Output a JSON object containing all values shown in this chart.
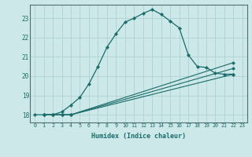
{
  "xlabel": "Humidex (Indice chaleur)",
  "bg_color": "#cce8e8",
  "grid_color": "#aacece",
  "line_color": "#1a6b6b",
  "xlim": [
    -0.5,
    23.5
  ],
  "ylim": [
    17.6,
    23.7
  ],
  "yticks": [
    18,
    19,
    20,
    21,
    22,
    23
  ],
  "xticks": [
    0,
    1,
    2,
    3,
    4,
    5,
    6,
    7,
    8,
    9,
    10,
    11,
    12,
    13,
    14,
    15,
    16,
    17,
    18,
    19,
    20,
    21,
    22,
    23
  ],
  "line1_x": [
    0,
    1,
    2,
    3,
    4,
    5,
    6,
    7,
    8,
    9,
    10,
    11,
    12,
    13,
    14,
    15,
    16,
    17,
    18,
    19,
    20,
    21,
    22
  ],
  "line1_y": [
    18.0,
    18.0,
    18.0,
    18.15,
    18.5,
    18.9,
    19.6,
    20.5,
    21.5,
    22.2,
    22.8,
    23.0,
    23.25,
    23.45,
    23.2,
    22.85,
    22.5,
    21.1,
    20.5,
    20.45,
    20.15,
    20.1,
    20.1
  ],
  "line2_x": [
    1,
    2,
    3,
    4,
    22
  ],
  "line2_y": [
    18.0,
    18.0,
    18.0,
    18.0,
    20.1
  ],
  "line3_x": [
    1,
    2,
    3,
    4,
    22
  ],
  "line3_y": [
    18.0,
    18.0,
    18.0,
    18.0,
    20.4
  ],
  "line4_x": [
    1,
    2,
    3,
    4,
    22
  ],
  "line4_y": [
    18.0,
    18.0,
    18.0,
    18.0,
    20.7
  ]
}
